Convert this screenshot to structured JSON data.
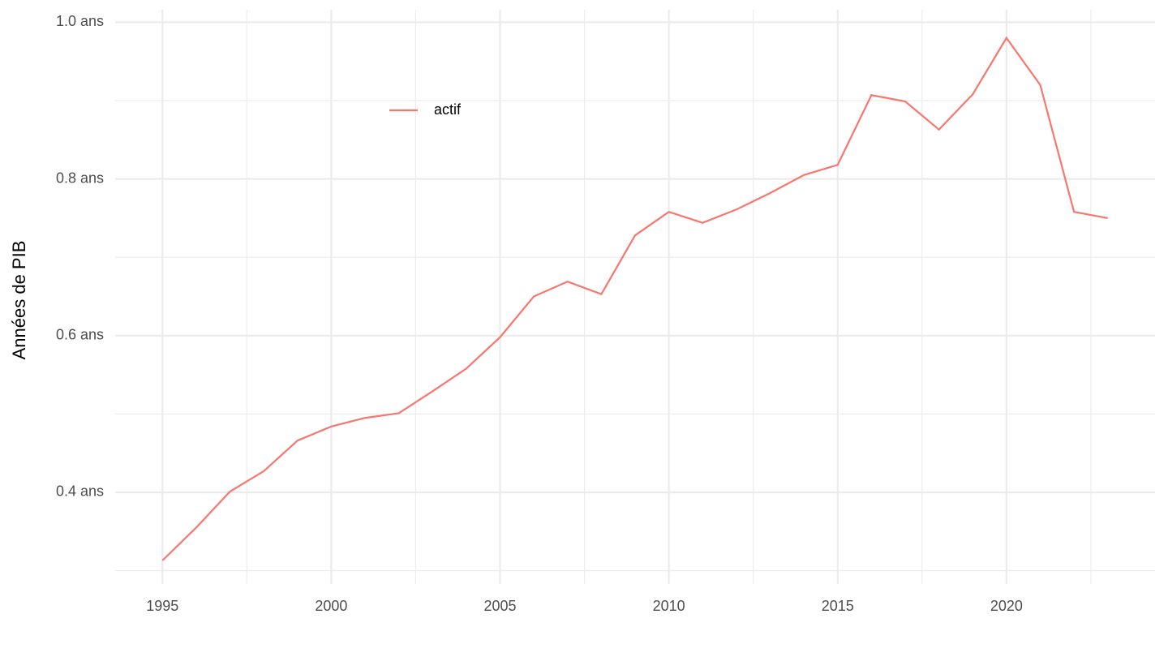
{
  "chart_data": {
    "type": "line",
    "y_label": "Années de PIB",
    "x": [
      1995,
      1996,
      1997,
      1998,
      1999,
      2000,
      2001,
      2002,
      2003,
      2004,
      2005,
      2006,
      2007,
      2008,
      2009,
      2010,
      2011,
      2012,
      2013,
      2014,
      2015,
      2016,
      2017,
      2018,
      2019,
      2020,
      2021,
      2022,
      2023
    ],
    "series": [
      {
        "name": "actif",
        "color": "#f8766d",
        "values": [
          0.313,
          0.355,
          0.401,
          0.427,
          0.466,
          0.484,
          0.495,
          0.501,
          0.529,
          0.558,
          0.598,
          0.65,
          0.669,
          0.653,
          0.728,
          0.758,
          0.744,
          0.761,
          0.782,
          0.805,
          0.818,
          0.907,
          0.899,
          0.863,
          0.908,
          0.98,
          0.92,
          0.758,
          0.75
        ]
      }
    ],
    "xlim": [
      1993.6,
      2024.4
    ],
    "xticks": [
      1995,
      2000,
      2005,
      2010,
      2015,
      2020
    ],
    "x_minor_grid": [
      1997.5,
      2002.5,
      2007.5,
      2012.5,
      2017.5,
      2022.5
    ],
    "ylim": [
      0.283,
      1.016
    ],
    "yticks": [
      {
        "value": 0.4,
        "label": "0.4 ans"
      },
      {
        "value": 0.6,
        "label": "0.6 ans"
      },
      {
        "value": 0.8,
        "label": "0.8 ans"
      },
      {
        "value": 1.0,
        "label": "1.0 ans"
      }
    ],
    "y_minor_grid": [
      0.3,
      0.5,
      0.7,
      0.9
    ],
    "grid": true,
    "legend": "top-left"
  }
}
